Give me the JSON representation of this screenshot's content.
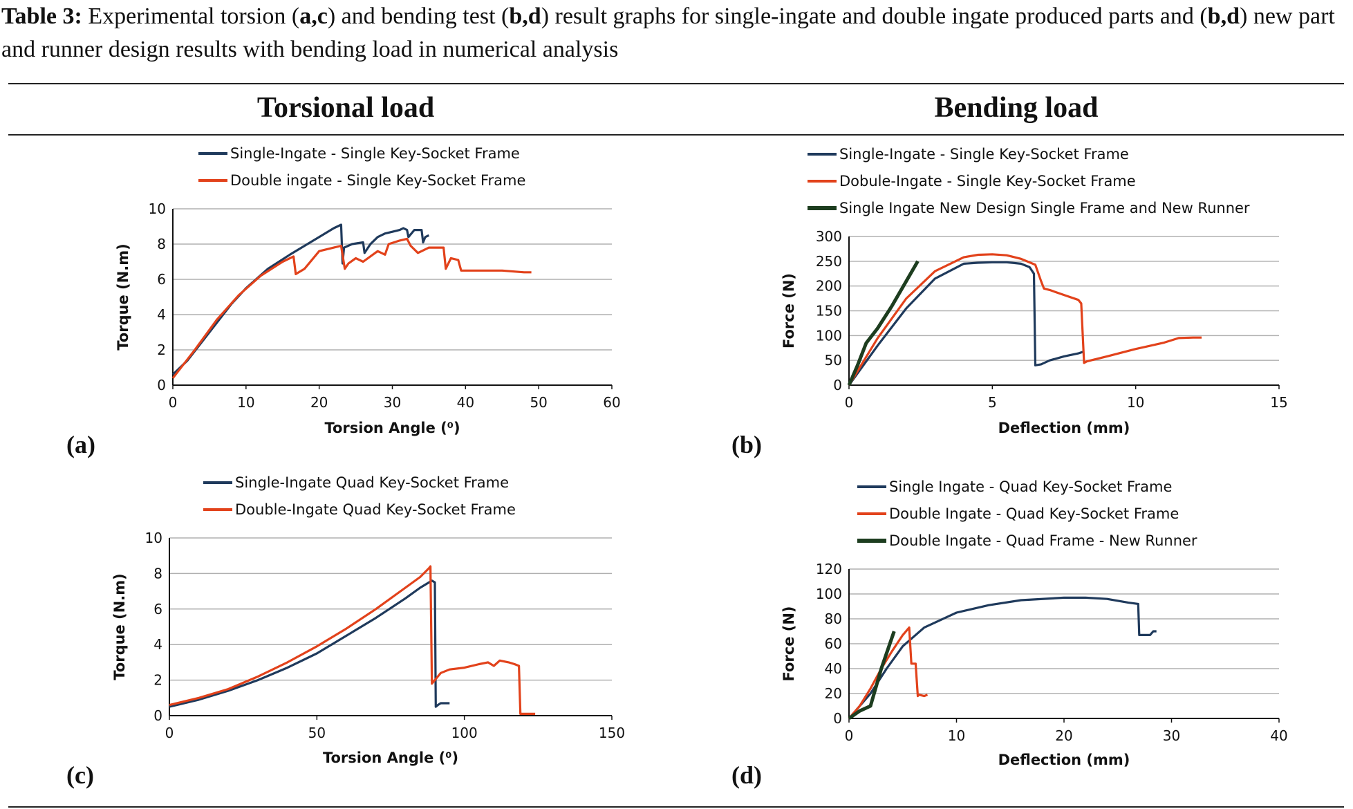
{
  "caption": {
    "label": "Table 3:",
    "text": " Experimental torsion (",
    "a": "a",
    "comma1": ",",
    "c": "c",
    "text2": ") and bending test (",
    "b": "b",
    "comma2": ",",
    "d": "d",
    "text3": ") result graphs for single-ingate and double ingate produced parts and (",
    "b2": "b",
    "comma3": ",",
    "d2": "d",
    "text4": ") new part and runner design results with bending load in numerical analysis"
  },
  "columns": {
    "left": "Torsional load",
    "right": "Bending load"
  },
  "panel_labels": [
    "(a)",
    "(b)",
    "(c)",
    "(d)"
  ],
  "colors": {
    "navy": "#1f3a5c",
    "red": "#e2421b",
    "green": "#1d3d1f",
    "grid": "#b0b0b0"
  },
  "chart_data": [
    {
      "id": "a",
      "type": "line",
      "xlabel": "Torsion Angle (⁰)",
      "ylabel": "Torque (N.m)",
      "xlim": [
        0,
        60
      ],
      "ylim": [
        0,
        10
      ],
      "xticks": [
        0,
        10,
        20,
        30,
        40,
        50,
        60
      ],
      "yticks": [
        0,
        2,
        4,
        6,
        8,
        10
      ],
      "series": [
        {
          "name": "Single-Ingate - Single Key-Socket Frame",
          "color": "#1f3a5c",
          "x": [
            0,
            2,
            5,
            8,
            10,
            13,
            16,
            18,
            20,
            22,
            23,
            23.2,
            23.4,
            24.5,
            26,
            26.2,
            27,
            28,
            29,
            30,
            31,
            31.5,
            32,
            32.2,
            33,
            34,
            34.2,
            34.5,
            35
          ],
          "y": [
            0.6,
            1.4,
            3.0,
            4.6,
            5.5,
            6.6,
            7.4,
            7.9,
            8.4,
            8.9,
            9.1,
            6.9,
            7.8,
            8.0,
            8.1,
            7.5,
            8.0,
            8.4,
            8.6,
            8.7,
            8.8,
            8.9,
            8.8,
            8.4,
            8.8,
            8.8,
            8.1,
            8.4,
            8.5
          ]
        },
        {
          "name": "Double ingate - Single Key-Socket Frame",
          "color": "#e2421b",
          "x": [
            0,
            3,
            6,
            9,
            12,
            15,
            16.5,
            16.8,
            18,
            20,
            22,
            23,
            23.5,
            24,
            25,
            26,
            28,
            29,
            29.5,
            31,
            32,
            32.5,
            33.5,
            35,
            37,
            37.3,
            38,
            39,
            39.4,
            40,
            45,
            48,
            49
          ],
          "y": [
            0.4,
            2.0,
            3.7,
            5.1,
            6.2,
            7.0,
            7.3,
            6.3,
            6.6,
            7.6,
            7.8,
            7.9,
            6.6,
            6.9,
            7.2,
            7.0,
            7.6,
            7.4,
            8.0,
            8.2,
            8.3,
            7.9,
            7.5,
            7.8,
            7.8,
            6.6,
            7.2,
            7.1,
            6.5,
            6.5,
            6.5,
            6.4,
            6.4
          ]
        }
      ]
    },
    {
      "id": "b",
      "type": "line",
      "xlabel": "Deflection (mm)",
      "ylabel": "Force (N)",
      "xlim": [
        0,
        15
      ],
      "ylim": [
        0,
        300
      ],
      "xticks": [
        0,
        5,
        10,
        15
      ],
      "yticks": [
        0,
        50,
        100,
        150,
        200,
        250,
        300
      ],
      "series": [
        {
          "name": "Single-Ingate - Single Key-Socket Frame",
          "color": "#1f3a5c",
          "x": [
            0,
            1,
            2,
            3,
            4,
            4.5,
            5,
            5.5,
            6,
            6.3,
            6.45,
            6.5,
            6.7,
            7,
            7.5,
            8,
            8.2
          ],
          "y": [
            0,
            80,
            155,
            215,
            245,
            247,
            248,
            248,
            245,
            238,
            225,
            40,
            42,
            50,
            58,
            64,
            68
          ]
        },
        {
          "name": "Dobule-Ingate - Single Key-Socket Frame",
          "color": "#e2421b",
          "x": [
            0,
            1,
            2,
            3,
            4,
            4.5,
            5,
            5.5,
            6,
            6.5,
            6.7,
            6.8,
            7,
            7.5,
            8,
            8.1,
            8.2,
            8.3,
            9,
            10,
            11,
            11.5,
            12,
            12.3
          ],
          "y": [
            0,
            95,
            175,
            230,
            258,
            263,
            264,
            262,
            255,
            243,
            210,
            195,
            192,
            182,
            172,
            165,
            45,
            48,
            58,
            73,
            86,
            95,
            96,
            96
          ]
        },
        {
          "name": "Single Ingate New Design Single Frame and New Runner",
          "color": "#1d3d1f",
          "x": [
            0,
            0.3,
            0.6,
            1,
            1.5,
            2,
            2.4
          ],
          "y": [
            0,
            40,
            85,
            115,
            160,
            210,
            250
          ]
        }
      ]
    },
    {
      "id": "c",
      "type": "line",
      "xlabel": "Torsion Angle (⁰)",
      "ylabel": "Torque (N.m)",
      "xlim": [
        0,
        150
      ],
      "ylim": [
        0,
        10
      ],
      "xticks": [
        0,
        50,
        100,
        150
      ],
      "yticks": [
        0,
        2,
        4,
        6,
        8,
        10
      ],
      "series": [
        {
          "name": "Single-Ingate Quad Key-Socket Frame",
          "color": "#1f3a5c",
          "x": [
            0,
            10,
            20,
            30,
            40,
            50,
            60,
            70,
            80,
            85,
            89,
            90,
            90.3,
            91,
            92,
            94,
            95
          ],
          "y": [
            0.5,
            0.9,
            1.4,
            2.0,
            2.7,
            3.5,
            4.5,
            5.5,
            6.6,
            7.2,
            7.6,
            7.5,
            0.5,
            0.6,
            0.7,
            0.7,
            0.7
          ]
        },
        {
          "name": "Double-Ingate Quad Key-Socket Frame",
          "color": "#e2421b",
          "x": [
            0,
            10,
            20,
            30,
            40,
            50,
            60,
            70,
            80,
            85,
            88,
            88.5,
            89,
            92,
            95,
            100,
            105,
            108,
            110,
            112,
            115,
            117,
            118.5,
            119,
            120,
            124
          ],
          "y": [
            0.6,
            1.0,
            1.5,
            2.2,
            3.0,
            3.9,
            4.9,
            6.0,
            7.2,
            7.8,
            8.3,
            8.4,
            1.8,
            2.4,
            2.6,
            2.7,
            2.9,
            3.0,
            2.8,
            3.1,
            3.0,
            2.9,
            2.8,
            0.1,
            0.1,
            0.1
          ]
        }
      ]
    },
    {
      "id": "d",
      "type": "line",
      "xlabel": "Deflection (mm)",
      "ylabel": "Force (N)",
      "xlim": [
        0,
        40
      ],
      "ylim": [
        0,
        120
      ],
      "xticks": [
        0,
        10,
        20,
        30,
        40
      ],
      "yticks": [
        0,
        20,
        40,
        60,
        80,
        100,
        120
      ],
      "series": [
        {
          "name": "Single Ingate - Quad Key-Socket Frame",
          "color": "#1f3a5c",
          "x": [
            0,
            2,
            3.5,
            5,
            7,
            10,
            13,
            16,
            20,
            22,
            24,
            26,
            26.9,
            27,
            28,
            28.3,
            28.6
          ],
          "y": [
            0,
            20,
            40,
            58,
            73,
            85,
            91,
            95,
            97,
            97,
            96,
            93,
            92,
            67,
            67,
            70,
            70
          ]
        },
        {
          "name": "Double Ingate - Quad Key-Socket Frame",
          "color": "#e2421b",
          "x": [
            0,
            1,
            2,
            3,
            4,
            5,
            5.6,
            5.8,
            6.2,
            6.4,
            6.5,
            7,
            7.3
          ],
          "y": [
            0,
            10,
            24,
            40,
            54,
            67,
            73,
            44,
            44,
            18,
            19,
            18,
            19
          ]
        },
        {
          "name": "Double Ingate - Quad  Frame - New Runner",
          "color": "#1d3d1f",
          "x": [
            0,
            1,
            2,
            3,
            4,
            4.2
          ],
          "y": [
            0,
            6,
            10,
            40,
            65,
            70
          ]
        }
      ]
    }
  ]
}
